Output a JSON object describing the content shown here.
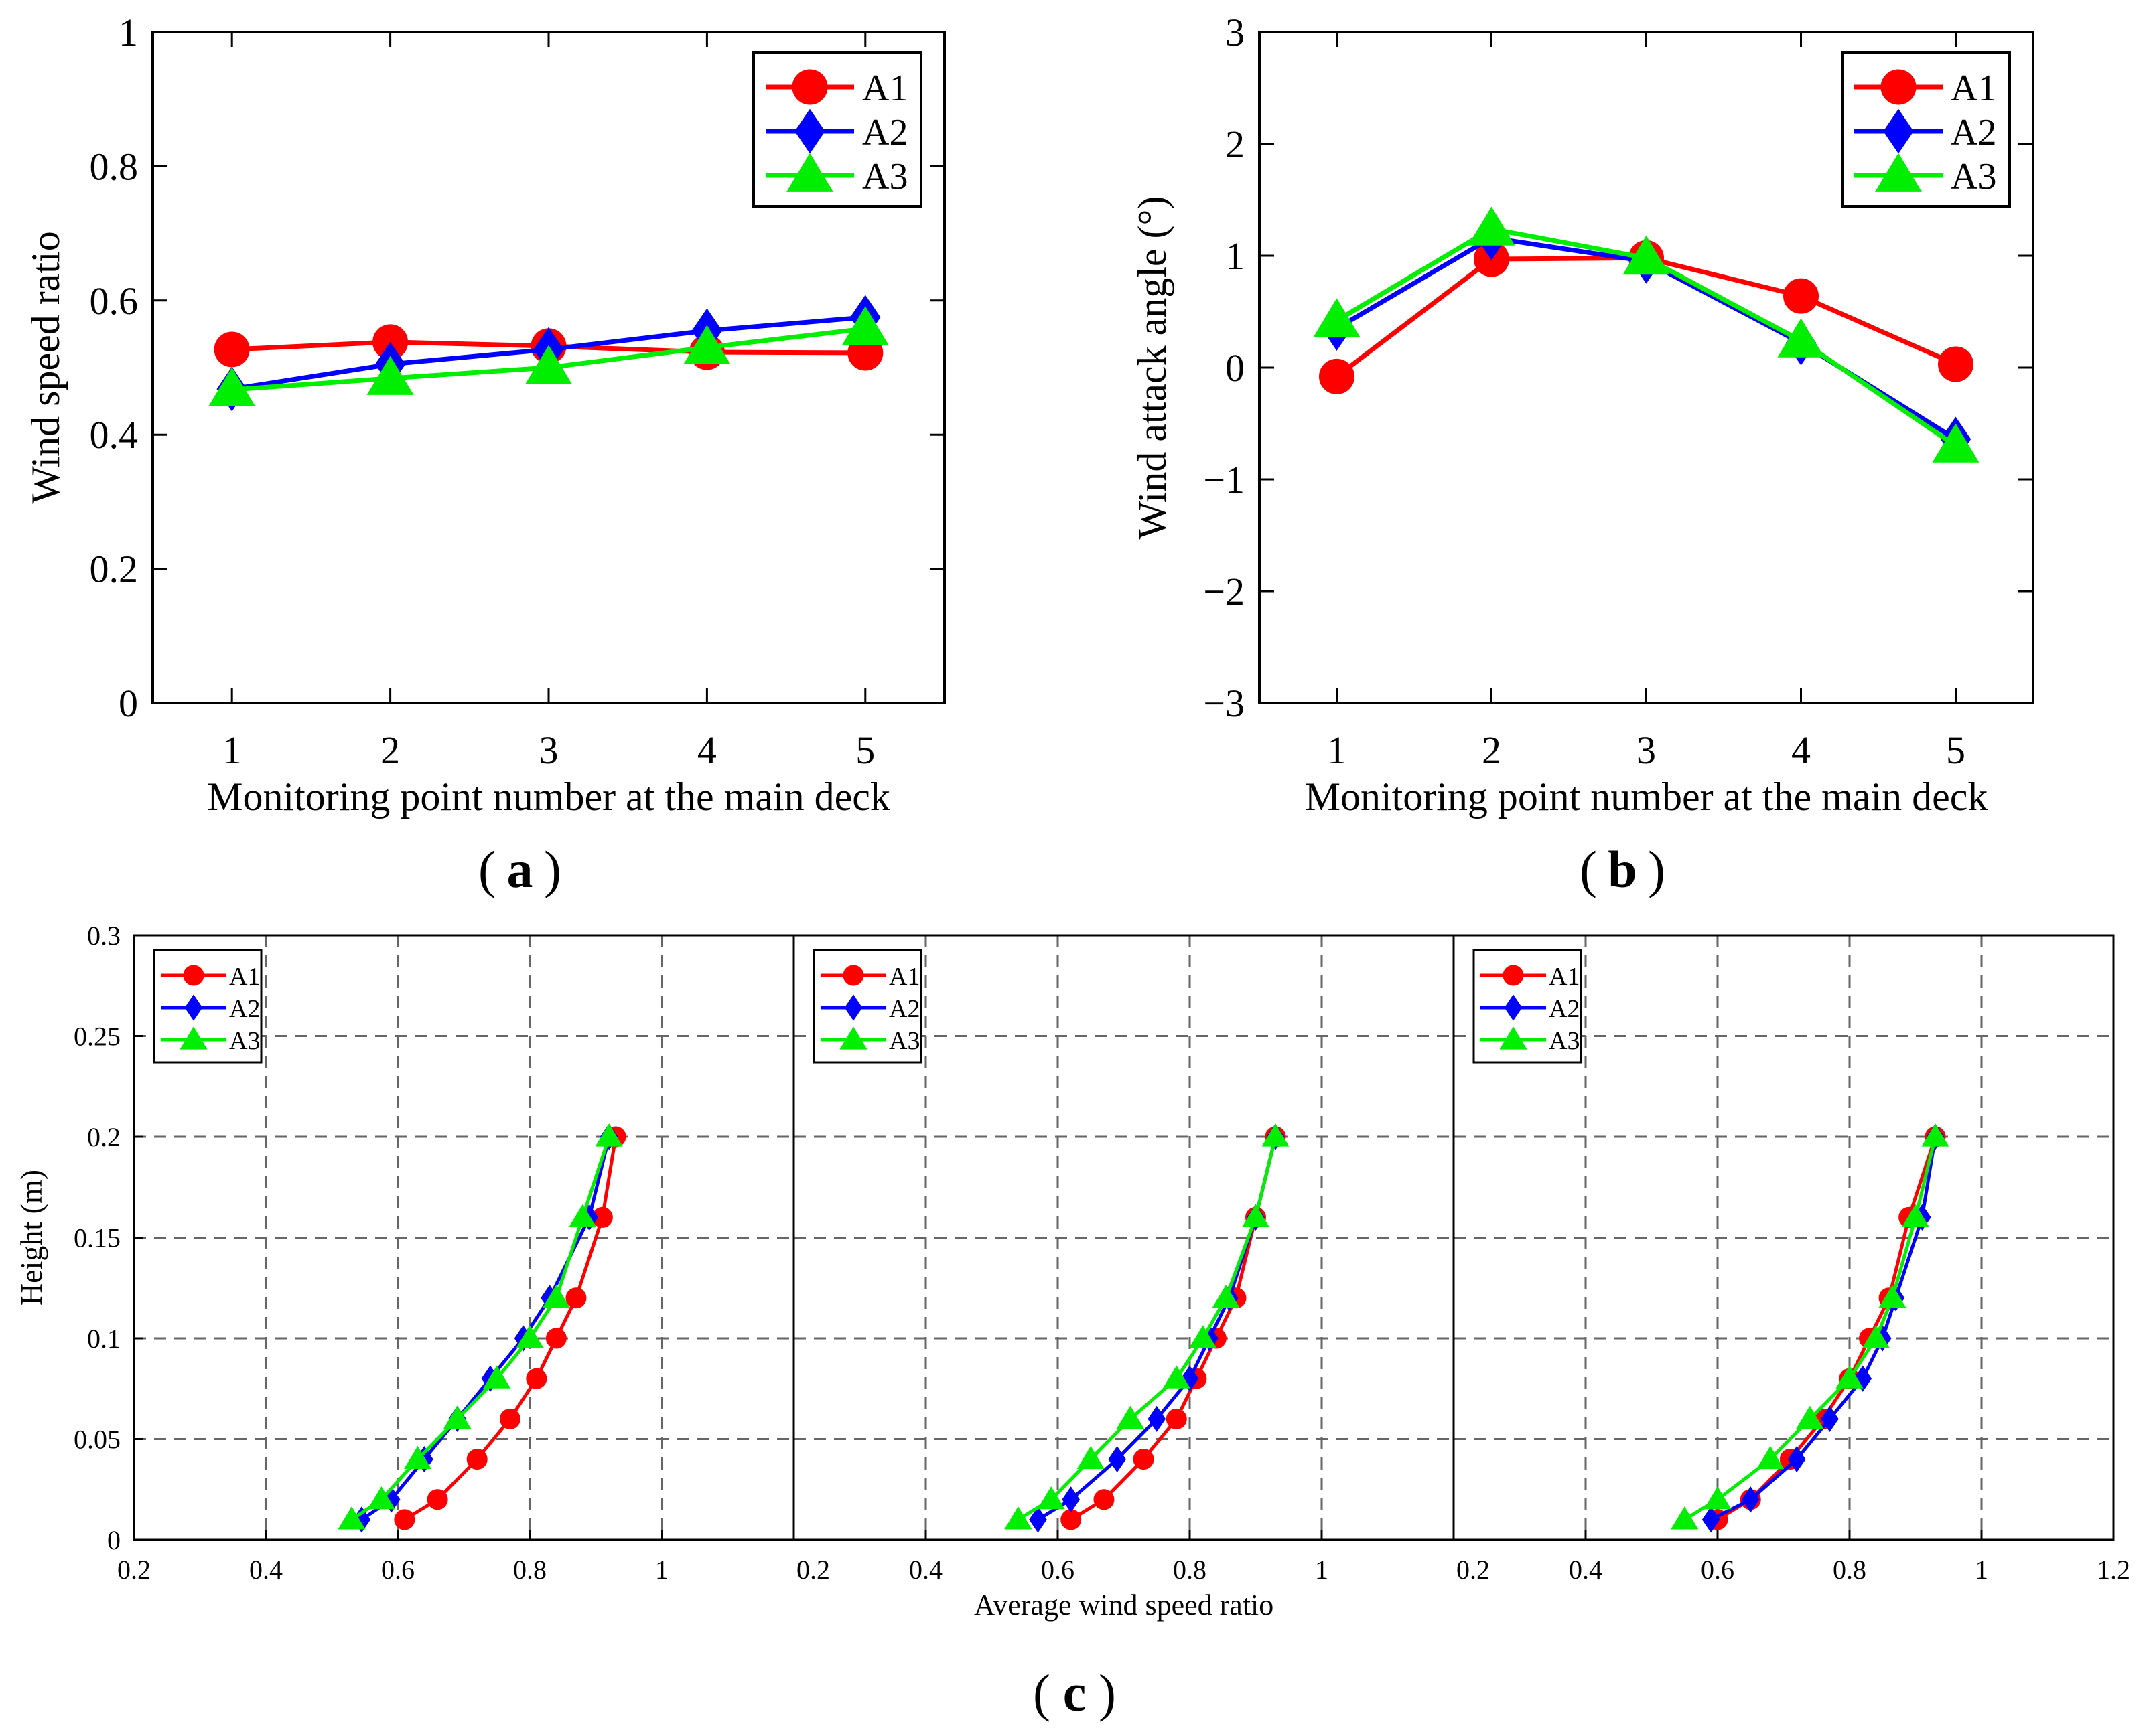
{
  "colors": {
    "A1": "#ff0000",
    "A2": "#0000ff",
    "A3": "#00ee00",
    "axis": "#000000",
    "grid": "#666666"
  },
  "chart_data": [
    {
      "panel": "a",
      "type": "line",
      "caption_letter": "a",
      "xlabel": "Monitoring point number at the main deck",
      "ylabel": "Wind speed ratio",
      "x": [
        1,
        2,
        3,
        4,
        5
      ],
      "xlim": [
        0.5,
        5.5
      ],
      "ylim": [
        0,
        1
      ],
      "xticks": [
        "1",
        "2",
        "3",
        "4",
        "5"
      ],
      "yticks": [
        "0",
        "0.2",
        "0.4",
        "0.6",
        "0.8",
        "1"
      ],
      "legend": [
        "A1",
        "A2",
        "A3"
      ],
      "legend_position": "top-right",
      "grid": false,
      "series": [
        {
          "name": "A1",
          "values": [
            0.527,
            0.538,
            0.532,
            0.523,
            0.522
          ]
        },
        {
          "name": "A2",
          "values": [
            0.468,
            0.505,
            0.527,
            0.555,
            0.575
          ]
        },
        {
          "name": "A3",
          "values": [
            0.467,
            0.484,
            0.5,
            0.53,
            0.558
          ]
        }
      ]
    },
    {
      "panel": "b",
      "type": "line",
      "caption_letter": "b",
      "xlabel": "Monitoring point number at the main deck",
      "ylabel": "Wind attack angle (°)",
      "x": [
        1,
        2,
        3,
        4,
        5
      ],
      "xlim": [
        0.5,
        5.5
      ],
      "ylim": [
        -3,
        3
      ],
      "xticks": [
        "1",
        "2",
        "3",
        "4",
        "5"
      ],
      "yticks": [
        "−3",
        "−2",
        "−1",
        "0",
        "1",
        "2",
        "3"
      ],
      "legend": [
        "A1",
        "A2",
        "A3"
      ],
      "legend_position": "top-right",
      "grid": false,
      "series": [
        {
          "name": "A1",
          "values": [
            -0.08,
            0.97,
            0.98,
            0.64,
            0.03
          ]
        },
        {
          "name": "A2",
          "values": [
            0.35,
            1.16,
            0.95,
            0.22,
            -0.64
          ]
        },
        {
          "name": "A3",
          "values": [
            0.42,
            1.24,
            0.98,
            0.24,
            -0.7
          ]
        }
      ]
    },
    {
      "panel": "c",
      "type": "line",
      "caption_letter": "c",
      "xlabel": "Average wind speed ratio",
      "ylabel": "Height (m)",
      "ylim": [
        0,
        0.3
      ],
      "yticks": [
        "0",
        "0.05",
        "0.1",
        "0.15",
        "0.2",
        "0.25",
        "0.3"
      ],
      "grid": true,
      "subplots": [
        {
          "xlim": [
            0.2,
            1.2
          ],
          "xticks": [
            "0.2",
            "0.4",
            "0.6",
            "0.8",
            "1"
          ],
          "legend": [
            "A1",
            "A2",
            "A3"
          ],
          "legend_position": "top-left",
          "series": [
            {
              "name": "A1",
              "x": [
                0.61,
                0.66,
                0.72,
                0.77,
                0.81,
                0.84,
                0.87,
                0.91,
                0.93
              ],
              "y": [
                0.01,
                0.02,
                0.04,
                0.06,
                0.08,
                0.1,
                0.12,
                0.16,
                0.2
              ]
            },
            {
              "name": "A2",
              "x": [
                0.545,
                0.59,
                0.64,
                0.69,
                0.74,
                0.79,
                0.83,
                0.89,
                0.92
              ],
              "y": [
                0.01,
                0.02,
                0.04,
                0.06,
                0.08,
                0.1,
                0.12,
                0.16,
                0.2
              ]
            },
            {
              "name": "A3",
              "x": [
                0.53,
                0.575,
                0.63,
                0.69,
                0.75,
                0.8,
                0.84,
                0.88,
                0.92
              ],
              "y": [
                0.01,
                0.02,
                0.04,
                0.06,
                0.08,
                0.1,
                0.12,
                0.16,
                0.2
              ]
            }
          ]
        },
        {
          "xlim": [
            0.2,
            1.2
          ],
          "xticks": [
            "0.2",
            "0.4",
            "0.6",
            "0.8",
            "1"
          ],
          "legend": [
            "A1",
            "A2",
            "A3"
          ],
          "legend_position": "top-left",
          "series": [
            {
              "name": "A1",
              "x": [
                0.62,
                0.67,
                0.73,
                0.78,
                0.81,
                0.84,
                0.87,
                0.9,
                0.93
              ],
              "y": [
                0.01,
                0.02,
                0.04,
                0.06,
                0.08,
                0.1,
                0.12,
                0.16,
                0.2
              ]
            },
            {
              "name": "A2",
              "x": [
                0.57,
                0.62,
                0.69,
                0.75,
                0.8,
                0.83,
                0.86,
                0.9,
                0.93
              ],
              "y": [
                0.01,
                0.02,
                0.04,
                0.06,
                0.08,
                0.1,
                0.12,
                0.16,
                0.2
              ]
            },
            {
              "name": "A3",
              "x": [
                0.54,
                0.59,
                0.65,
                0.71,
                0.78,
                0.82,
                0.855,
                0.9,
                0.93
              ],
              "y": [
                0.01,
                0.02,
                0.04,
                0.06,
                0.08,
                0.1,
                0.12,
                0.16,
                0.2
              ]
            }
          ]
        },
        {
          "xlim": [
            0.2,
            1.2
          ],
          "xticks": [
            "0.2",
            "0.4",
            "0.6",
            "0.8",
            "1",
            "1.2"
          ],
          "legend": [
            "A1",
            "A2",
            "A3"
          ],
          "legend_position": "top-left",
          "series": [
            {
              "name": "A1",
              "x": [
                0.6,
                0.65,
                0.71,
                0.76,
                0.8,
                0.83,
                0.86,
                0.89,
                0.93
              ],
              "y": [
                0.01,
                0.02,
                0.04,
                0.06,
                0.08,
                0.1,
                0.12,
                0.16,
                0.2
              ]
            },
            {
              "name": "A2",
              "x": [
                0.59,
                0.65,
                0.72,
                0.77,
                0.82,
                0.85,
                0.87,
                0.91,
                0.93
              ],
              "y": [
                0.01,
                0.02,
                0.04,
                0.06,
                0.08,
                0.1,
                0.12,
                0.16,
                0.2
              ]
            },
            {
              "name": "A3",
              "x": [
                0.55,
                0.6,
                0.68,
                0.74,
                0.8,
                0.84,
                0.865,
                0.9,
                0.93
              ],
              "y": [
                0.01,
                0.02,
                0.04,
                0.06,
                0.08,
                0.1,
                0.12,
                0.16,
                0.2
              ]
            }
          ]
        }
      ]
    }
  ]
}
